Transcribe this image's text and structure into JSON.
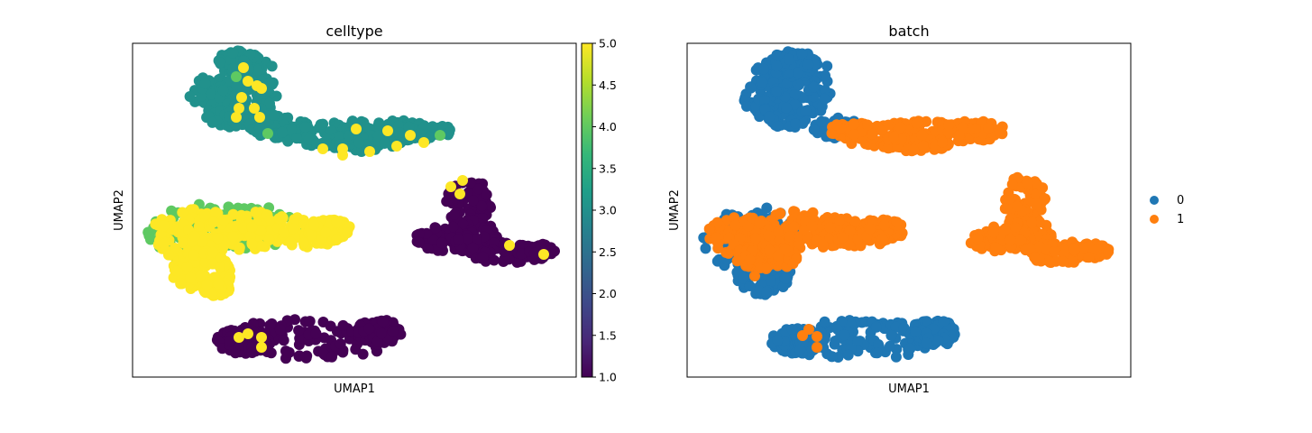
{
  "chart_data": [
    {
      "type": "scatter",
      "title": "celltype",
      "xlabel": "UMAP1",
      "ylabel": "UMAP2",
      "ticks_visible": false,
      "colormap": "viridis",
      "colorbar": {
        "min": 1.0,
        "max": 5.0,
        "tick_labels": [
          "1.0",
          "1.5",
          "2.0",
          "2.5",
          "3.0",
          "3.5",
          "4.0",
          "4.5",
          "5.0"
        ],
        "colors": [
          "#440154",
          "#482878",
          "#3e4989",
          "#31688e",
          "#26828e",
          "#1f9e89",
          "#35b779",
          "#6ece58",
          "#b5de2b",
          "#fde725"
        ]
      },
      "clusters": [
        {
          "region": "top-left arm",
          "dominant_value": 3,
          "color": "#21918c",
          "minority_values": [
            4,
            5
          ]
        },
        {
          "region": "middle-left",
          "dominant_value": 5,
          "color": "#fde725",
          "minority_values": [
            4
          ]
        },
        {
          "region": "right",
          "dominant_value": 1,
          "color": "#440154",
          "minority_values": [
            5
          ]
        },
        {
          "region": "bottom",
          "dominant_value": 1,
          "color": "#440154",
          "minority_values": [
            5
          ]
        }
      ]
    },
    {
      "type": "scatter",
      "title": "batch",
      "xlabel": "UMAP1",
      "ylabel": "UMAP2",
      "ticks_visible": false,
      "legend_position": "right",
      "legend": [
        {
          "label": "0",
          "color": "#1f77b4"
        },
        {
          "label": "1",
          "color": "#ff7f0e"
        }
      ],
      "clusters": [
        {
          "region": "top-left head",
          "dominant_category": "0"
        },
        {
          "region": "top arm",
          "dominant_category": "1"
        },
        {
          "region": "middle-left",
          "dominant_category": "1",
          "minority_category": "0"
        },
        {
          "region": "right",
          "dominant_category": "1"
        },
        {
          "region": "bottom",
          "dominant_category": "0",
          "minority_category": "1"
        }
      ]
    }
  ]
}
